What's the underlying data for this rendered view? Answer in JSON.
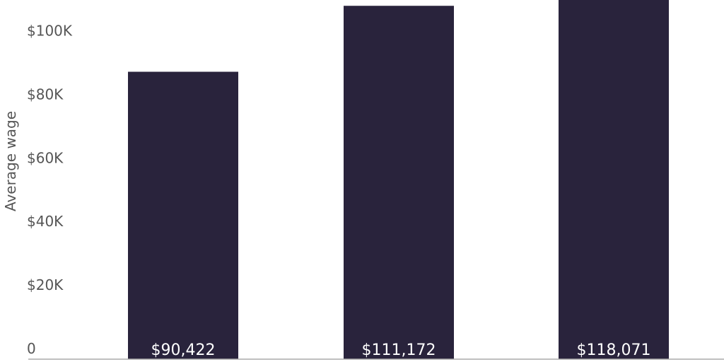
{
  "chart_data": {
    "type": "bar",
    "ylabel": "Average wage",
    "ylim": [
      0,
      113000
    ],
    "yticks": [
      0,
      20000,
      40000,
      60000,
      80000,
      100000
    ],
    "ytick_labels": [
      "0",
      "$20K",
      "$40K",
      "$60K",
      "$80K",
      "$100K"
    ],
    "values": [
      90422,
      111172,
      118071
    ],
    "value_labels": [
      "$90,422",
      "$111,172",
      "$118,071"
    ],
    "bar_color": "#29233c",
    "axis_color": "#aaaaaa",
    "grid": false
  }
}
